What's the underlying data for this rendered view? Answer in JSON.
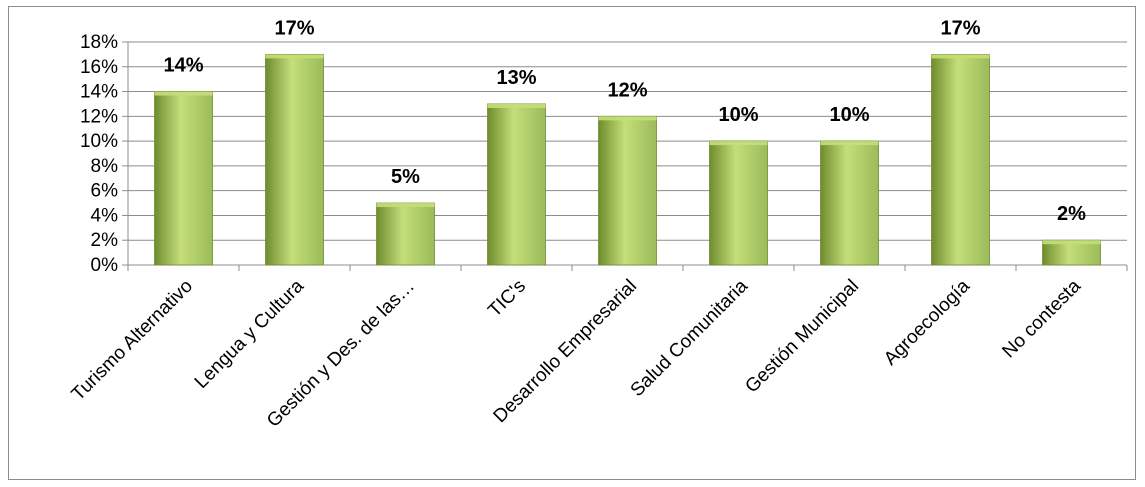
{
  "chart_data": {
    "type": "bar",
    "categories": [
      "Turismo Alternativo",
      "Lengua y Cultura",
      "Gestión y Des. de las…",
      "TIC's",
      "Desarrollo Empresarial",
      "Salud Comunitaria",
      "Gestión Municipal",
      "Agroecología",
      "No contesta"
    ],
    "values": [
      14,
      17,
      5,
      13,
      12,
      10,
      10,
      17,
      2
    ],
    "data_labels": [
      "14%",
      "17%",
      "5%",
      "13%",
      "12%",
      "10%",
      "10%",
      "17%",
      "2%"
    ],
    "y_ticks": [
      0,
      2,
      4,
      6,
      8,
      10,
      12,
      14,
      16,
      18
    ],
    "y_tick_labels": [
      "0%",
      "2%",
      "4%",
      "6%",
      "8%",
      "10%",
      "12%",
      "14%",
      "16%",
      "18%"
    ],
    "ylim": [
      0,
      18
    ],
    "grid": true,
    "legend": "none",
    "colors": {
      "bar_light": "#c4de7a",
      "bar_mid": "#9bbb59",
      "bar_dark": "#6f8c2e",
      "grid": "#8c8c8c",
      "axis": "#8c8c8c"
    }
  }
}
